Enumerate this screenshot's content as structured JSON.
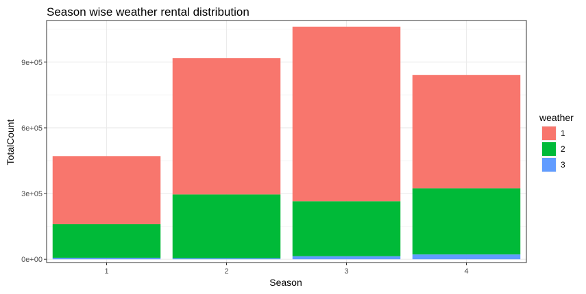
{
  "chart_data": {
    "type": "bar",
    "stacked": true,
    "title": "Season wise weather rental distribution",
    "xlabel": "Season",
    "ylabel": "TotalCount",
    "categories": [
      "1",
      "2",
      "3",
      "4"
    ],
    "series": [
      {
        "name": "1",
        "color": "#F8766D",
        "values": [
          311000,
          622000,
          797000,
          517000
        ]
      },
      {
        "name": "2",
        "color": "#00BA38",
        "values": [
          153000,
          291000,
          251000,
          302000
        ]
      },
      {
        "name": "3",
        "color": "#619CFF",
        "values": [
          7000,
          5000,
          14000,
          22000
        ]
      }
    ],
    "ylim": [
      -15000,
      1090000
    ],
    "yticks": [
      0,
      300000,
      600000,
      900000
    ],
    "ytick_labels": [
      "0e+00",
      "3e+05",
      "6e+05",
      "9e+05"
    ],
    "grid": true,
    "legend": {
      "title": "weather",
      "position": "right"
    }
  }
}
